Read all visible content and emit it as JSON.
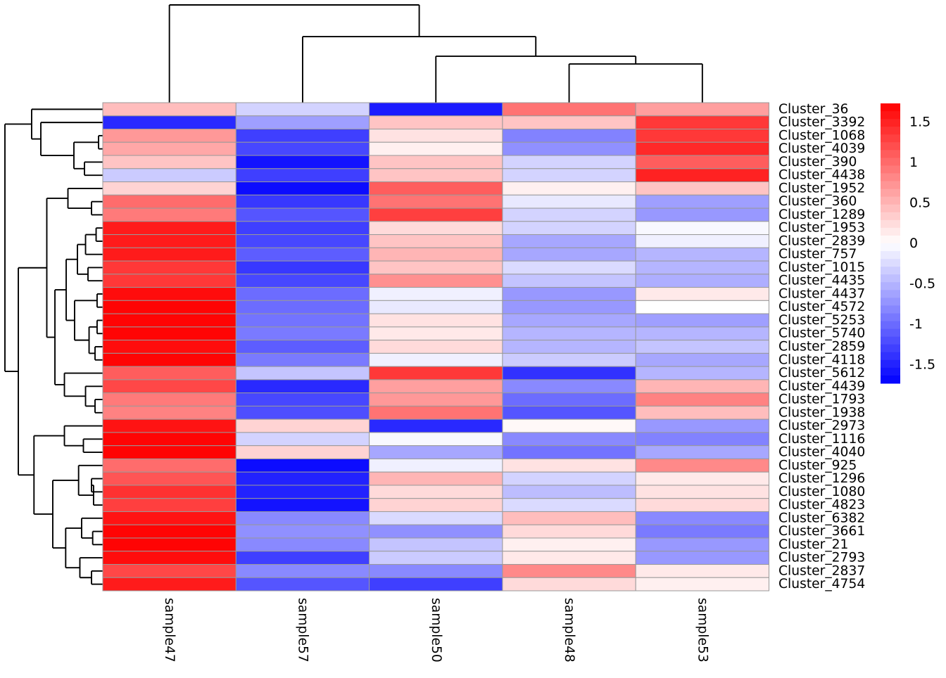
{
  "chart_data": {
    "type": "heatmap",
    "title": "",
    "columns": [
      "sample47",
      "sample57",
      "sample50",
      "sample48",
      "sample53"
    ],
    "rows": [
      "Cluster_36",
      "Cluster_3392",
      "Cluster_1068",
      "Cluster_4039",
      "Cluster_390",
      "Cluster_4438",
      "Cluster_1952",
      "Cluster_360",
      "Cluster_1289",
      "Cluster_1953",
      "Cluster_2839",
      "Cluster_757",
      "Cluster_1015",
      "Cluster_4435",
      "Cluster_4437",
      "Cluster_4572",
      "Cluster_5253",
      "Cluster_5740",
      "Cluster_2859",
      "Cluster_4118",
      "Cluster_5612",
      "Cluster_4439",
      "Cluster_1793",
      "Cluster_1938",
      "Cluster_2973",
      "Cluster_1116",
      "Cluster_4040",
      "Cluster_925",
      "Cluster_1296",
      "Cluster_1080",
      "Cluster_4823",
      "Cluster_6382",
      "Cluster_3661",
      "Cluster_21",
      "Cluster_2793",
      "Cluster_2837",
      "Cluster_4754"
    ],
    "values": [
      [
        0.45,
        -0.3,
        -1.55,
        0.95,
        0.65
      ],
      [
        -1.45,
        -0.65,
        0.4,
        0.4,
        1.35
      ],
      [
        0.7,
        -1.3,
        0.2,
        -0.85,
        1.35
      ],
      [
        0.6,
        -1.25,
        0.1,
        -0.75,
        1.45
      ],
      [
        0.4,
        -1.6,
        0.4,
        -0.3,
        1.1
      ],
      [
        -0.35,
        -1.3,
        0.4,
        -0.3,
        1.5
      ],
      [
        0.3,
        -1.65,
        1.1,
        0.1,
        0.4
      ],
      [
        1.0,
        -1.35,
        0.95,
        -0.15,
        -0.65
      ],
      [
        0.9,
        -1.15,
        1.3,
        -0.3,
        -0.7
      ],
      [
        1.55,
        -1.3,
        0.25,
        -0.3,
        -0.05
      ],
      [
        1.55,
        -1.25,
        0.4,
        -0.6,
        -0.1
      ],
      [
        1.55,
        -1.1,
        0.5,
        -0.6,
        -0.5
      ],
      [
        1.35,
        -1.35,
        0.4,
        -0.25,
        -0.5
      ],
      [
        1.35,
        -1.25,
        0.75,
        -0.4,
        -0.55
      ],
      [
        1.65,
        -1.0,
        -0.1,
        -0.7,
        0.15
      ],
      [
        1.7,
        -1.0,
        -0.15,
        -0.7,
        0.0
      ],
      [
        1.7,
        -0.95,
        0.2,
        -0.6,
        -0.65
      ],
      [
        1.7,
        -0.9,
        0.15,
        -0.5,
        -0.5
      ],
      [
        1.65,
        -1.1,
        0.25,
        -0.5,
        -0.4
      ],
      [
        1.7,
        -0.9,
        -0.1,
        -0.35,
        -0.6
      ],
      [
        1.1,
        -0.4,
        1.35,
        -1.4,
        -0.5
      ],
      [
        1.25,
        -1.45,
        0.65,
        -0.8,
        0.5
      ],
      [
        0.9,
        -1.25,
        0.7,
        -1.0,
        0.85
      ],
      [
        0.85,
        -1.2,
        0.95,
        -1.15,
        0.45
      ],
      [
        1.6,
        0.3,
        -1.45,
        0.05,
        -0.7
      ],
      [
        1.7,
        -0.3,
        -0.05,
        -0.8,
        -0.85
      ],
      [
        1.7,
        0.3,
        -0.6,
        -0.95,
        -0.6
      ],
      [
        1.0,
        -1.65,
        -0.1,
        0.2,
        0.8
      ],
      [
        1.15,
        -1.5,
        0.5,
        -0.3,
        0.15
      ],
      [
        1.4,
        -1.5,
        0.25,
        -0.45,
        0.2
      ],
      [
        1.3,
        -1.6,
        0.3,
        -0.25,
        0.25
      ],
      [
        1.6,
        -0.8,
        -0.25,
        0.45,
        -0.8
      ],
      [
        1.7,
        -0.75,
        -0.75,
        0.25,
        -0.9
      ],
      [
        1.7,
        -0.8,
        -0.4,
        0.1,
        -0.7
      ],
      [
        1.65,
        -1.3,
        -0.35,
        0.15,
        -0.7
      ],
      [
        1.25,
        -0.8,
        -0.8,
        0.8,
        0.15
      ],
      [
        1.55,
        -1.15,
        -1.3,
        0.25,
        0.1
      ]
    ],
    "color_scale": {
      "low": "#0000FF",
      "mid": "#FFFFFF",
      "high": "#FF0000",
      "min": -1.73,
      "max": 1.73
    },
    "legend_ticks": [
      "1.5",
      "1",
      "0.5",
      "0",
      "-0.5",
      "-1",
      "-1.5"
    ],
    "legend_tick_values": [
      1.5,
      1,
      0.5,
      0,
      -0.5,
      -1,
      -1.5
    ],
    "cell_border_color": "#999999",
    "line_color": "#000000",
    "row_dendrogram": {
      "h": 1.0,
      "c": [
        {
          "h": 0.727,
          "c": [
            0,
            {
              "h": 0.633,
              "c": [
                1,
                {
                  "h": 0.295,
                  "c": [
                    {
                      "h": 0.043,
                      "c": [
                        2,
                        3
                      ]
                    },
                    {
                      "h": 0.187,
                      "c": [
                        4,
                        5
                      ]
                    }
                  ]
                }
              ]
            }
          ]
        },
        {
          "h": 0.863,
          "c": [
            {
              "h": 0.572,
              "c": [
                {
                  "h": 0.356,
                  "c": [
                    6,
                    {
                      "h": 0.115,
                      "c": [
                        7,
                        8
                      ]
                    }
                  ]
                },
                {
                  "h": 0.489,
                  "c": [
                    {
                      "h": 0.374,
                      "c": [
                        {
                          "h": 0.259,
                          "c": [
                            {
                              "h": 0.176,
                              "c": [
                                {
                                  "h": 0.068,
                                  "c": [
                                    9,
                                    10
                                  ]
                                },
                                11
                              ]
                            },
                            {
                              "h": 0.151,
                              "c": [
                                12,
                                13
                              ]
                            }
                          ]
                        },
                        {
                          "h": 0.288,
                          "c": [
                            {
                              "h": 0.058,
                              "c": [
                                14,
                                15
                              ]
                            },
                            {
                              "h": 0.14,
                              "c": [
                                {
                                  "h": 0.058,
                                  "c": [
                                    16,
                                    17
                                  ]
                                },
                                {
                                  "h": 0.079,
                                  "c": [
                                    18,
                                    19
                                  ]
                                }
                              ]
                            }
                          ]
                        }
                      ]
                    },
                    {
                      "h": 0.392,
                      "c": [
                        20,
                        {
                          "h": 0.176,
                          "c": [
                            21,
                            {
                              "h": 0.079,
                              "c": [
                                22,
                                23
                              ]
                            }
                          ]
                        }
                      ]
                    }
                  ]
                }
              ]
            },
            {
              "h": 0.703,
              "c": [
                {
                  "h": 0.392,
                  "c": [
                    24,
                    {
                      "h": 0.198,
                      "c": [
                        25,
                        26
                      ]
                    }
                  ]
                },
                {
                  "h": 0.511,
                  "c": [
                    {
                      "h": 0.247,
                      "c": [
                        27,
                        {
                          "h": 0.094,
                          "c": [
                            {
                              "h": 0.115,
                              "c": [
                                28,
                                29
                              ]
                            },
                            30
                          ]
                        }
                      ]
                    },
                    {
                      "h": 0.379,
                      "c": [
                        {
                          "h": 0.216,
                          "c": [
                            31,
                            {
                              "h": 0.103,
                              "c": [
                                32,
                                33
                              ]
                            }
                          ]
                        },
                        {
                          "h": 0.234,
                          "c": [
                            34,
                            {
                              "h": 0.115,
                              "c": [
                                35,
                                36
                              ]
                            }
                          ]
                        }
                      ]
                    }
                  ]
                }
              ]
            }
          ]
        }
      ]
    },
    "col_dendrogram": {
      "h": 1.0,
      "c": [
        0,
        {
          "h": 0.676,
          "c": [
            1,
            {
              "h": 0.475,
              "c": [
                2,
                {
                  "h": 0.396,
                  "c": [
                    3,
                    4
                  ]
                }
              ]
            }
          ]
        }
      ]
    }
  }
}
